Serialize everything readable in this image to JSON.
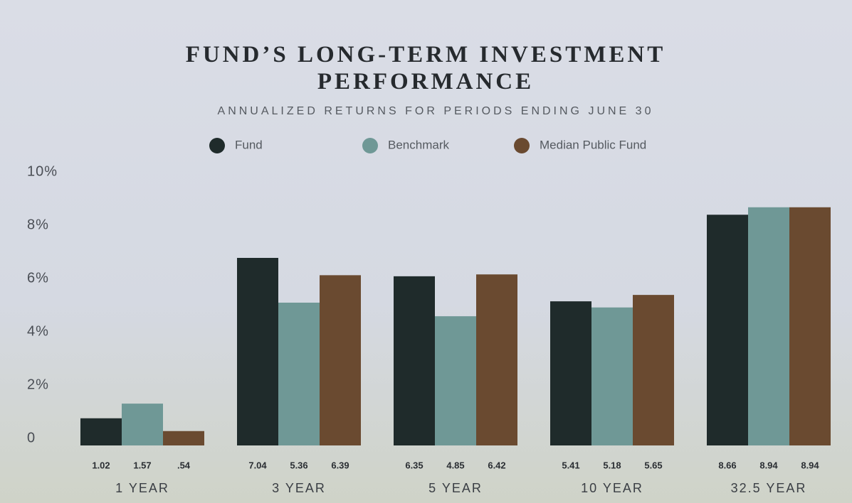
{
  "chart_data": {
    "type": "bar",
    "title": "FUND’S LONG-TERM INVESTMENT PERFORMANCE",
    "subtitle": "ANNUALIZED RETURNS FOR PERIODS ENDING JUNE 30",
    "categories": [
      "1 YEAR",
      "3 YEAR",
      "5 YEAR",
      "10 YEAR",
      "32.5 YEAR"
    ],
    "series": [
      {
        "name": "Fund",
        "color": "#1f2b2b",
        "values": [
          1.02,
          7.04,
          6.35,
          5.41,
          8.66
        ]
      },
      {
        "name": "Benchmark",
        "color": "#6f9896",
        "values": [
          1.57,
          5.36,
          4.85,
          5.18,
          8.94
        ]
      },
      {
        "name": "Median Public Fund",
        "color": "#6a4a30",
        "values": [
          0.54,
          6.39,
          6.42,
          5.65,
          8.94
        ],
        "value_labels": [
          ".54",
          "6.39",
          "6.42",
          "5.65",
          "8.94"
        ]
      }
    ],
    "ylim": [
      0,
      10
    ],
    "yticks": [
      0,
      {
        "value": 2,
        "label": "2%"
      },
      {
        "value": 4,
        "label": "4%"
      },
      {
        "value": 6,
        "label": "6%"
      },
      {
        "value": 8,
        "label": "8%"
      },
      {
        "value": 10,
        "label": "10%"
      }
    ],
    "legend": "top"
  }
}
